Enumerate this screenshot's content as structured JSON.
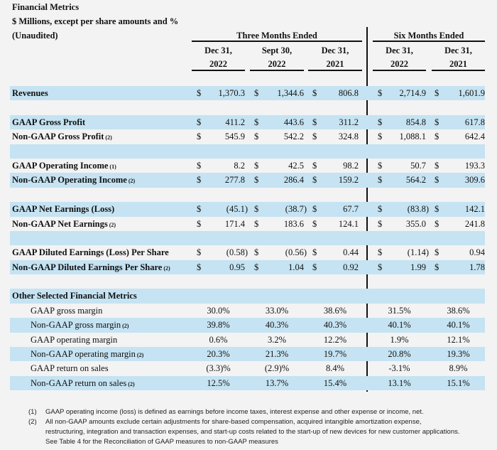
{
  "header": {
    "title": "Financial Metrics",
    "subtitle": "$ Millions, except per share amounts and %",
    "unaudited": "(Unaudited)",
    "group_three": "Three Months Ended",
    "group_six": "Six Months Ended",
    "columns": [
      {
        "line1": "Dec 31,",
        "line2": "2022"
      },
      {
        "line1": "Sept 30,",
        "line2": "2022"
      },
      {
        "line1": "Dec 31,",
        "line2": "2021"
      },
      {
        "line1": "Dec 31,",
        "line2": "2022"
      },
      {
        "line1": "Dec 31,",
        "line2": "2021"
      }
    ]
  },
  "currency_symbol": "$",
  "colors": {
    "band": "#c5e3f2",
    "background": "#f3f3f3"
  },
  "rows": [
    {
      "type": "money",
      "label": "Revenues",
      "note": "",
      "values": [
        "1,370.3",
        "1,344.6",
        "806.8",
        "2,714.9",
        "1,601.9"
      ]
    },
    {
      "type": "empty"
    },
    {
      "type": "money",
      "label": "GAAP Gross Profit",
      "note": "",
      "values": [
        "411.2",
        "443.6",
        "311.2",
        "854.8",
        "617.8"
      ]
    },
    {
      "type": "money",
      "label": "Non-GAAP Gross Profit",
      "note": "(2)",
      "values": [
        "545.9",
        "542.2",
        "324.8",
        "1,088.1",
        "642.4"
      ]
    },
    {
      "type": "empty"
    },
    {
      "type": "money",
      "label": "GAAP Operating Income",
      "note": "(1)",
      "values": [
        "8.2",
        "42.5",
        "98.2",
        "50.7",
        "193.3"
      ]
    },
    {
      "type": "money",
      "label": "Non-GAAP Operating Income",
      "note": "(2)",
      "values": [
        "277.8",
        "286.4",
        "159.2",
        "564.2",
        "309.6"
      ]
    },
    {
      "type": "empty"
    },
    {
      "type": "money",
      "label": "GAAP Net Earnings (Loss)",
      "note": "",
      "values": [
        "(45.1)",
        "(38.7)",
        "67.7",
        "(83.8)",
        "142.1"
      ]
    },
    {
      "type": "money",
      "label": "Non-GAAP Net Earnings",
      "note": "(2)",
      "values": [
        "171.4",
        "183.6",
        "124.1",
        "355.0",
        "241.8"
      ]
    },
    {
      "type": "empty"
    },
    {
      "type": "money",
      "label": "GAAP Diluted Earnings (Loss) Per Share",
      "note": "",
      "values": [
        "(0.58)",
        "(0.56)",
        "0.44",
        "(1.14)",
        "0.94"
      ]
    },
    {
      "type": "money",
      "label": "Non-GAAP Diluted Earnings Per Share",
      "note": "(2)",
      "values": [
        "0.95",
        "1.04",
        "0.92",
        "1.99",
        "1.78"
      ]
    },
    {
      "type": "empty"
    },
    {
      "type": "section",
      "label": "Other Selected Financial Metrics",
      "note": ""
    },
    {
      "type": "pct",
      "label": "GAAP gross margin",
      "note": "",
      "values": [
        "30.0%",
        "33.0%",
        "38.6%",
        "31.5%",
        "38.6%"
      ]
    },
    {
      "type": "pct",
      "label": "Non-GAAP gross margin",
      "note": "(2)",
      "values": [
        "39.8%",
        "40.3%",
        "40.3%",
        "40.1%",
        "40.1%"
      ]
    },
    {
      "type": "pct",
      "label": "GAAP operating margin",
      "note": "",
      "values": [
        "0.6%",
        "3.2%",
        "12.2%",
        "1.9%",
        "12.1%"
      ]
    },
    {
      "type": "pct",
      "label": "Non-GAAP operating margin",
      "note": "(2)",
      "values": [
        "20.3%",
        "21.3%",
        "19.7%",
        "20.8%",
        "19.3%"
      ]
    },
    {
      "type": "pct",
      "label": "GAAP return on sales",
      "note": "",
      "values": [
        "(3.3)%",
        "(2.9)%",
        "8.4%",
        "-3.1%",
        "8.9%"
      ]
    },
    {
      "type": "pct",
      "label": "Non-GAAP return on sales",
      "note": "(2)",
      "values": [
        "12.5%",
        "13.7%",
        "15.4%",
        "13.1%",
        "15.1%"
      ]
    }
  ],
  "footnotes": [
    {
      "num": "(1)",
      "lines": [
        "GAAP operating income (loss) is defined as earnings before income taxes, interest expense and other expense or income, net."
      ]
    },
    {
      "num": "(2)",
      "lines": [
        "All non-GAAP amounts exclude certain adjustments for share-based compensation, acquired intangible amortization expense,",
        "restructuring, integration and transaction expenses, and start-up costs related to the start-up of new devices for new customer applications.",
        "See Table 4 for the Reconciliation of GAAP measures to non-GAAP measures"
      ]
    }
  ]
}
